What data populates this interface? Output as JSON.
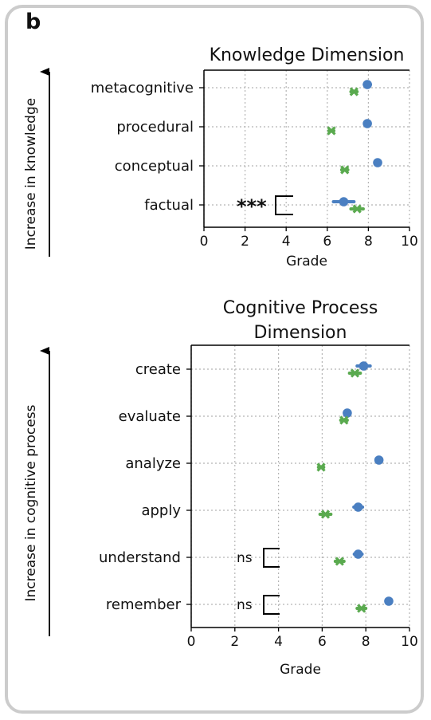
{
  "panel_label": "b",
  "colors": {
    "series_a": "#4a7fc1",
    "series_b": "#5aaa4f"
  },
  "chart_data": [
    {
      "type": "scatter",
      "title": "Knowledge Dimension",
      "xlabel": "Grade",
      "ylabel": "Increase in knowledge",
      "xlim": [
        0,
        10
      ],
      "xticks": [
        "0",
        "2",
        "4",
        "6",
        "8",
        "10"
      ],
      "grid": true,
      "categories": [
        "metacognitive",
        "procedural",
        "conceptual",
        "factual"
      ],
      "series": [
        {
          "marker": "circle",
          "color": "#4a7fc1",
          "values": [
            7.95,
            7.95,
            8.45,
            6.8
          ],
          "err": [
            0.15,
            0.12,
            0.12,
            0.5
          ]
        },
        {
          "marker": "x",
          "color": "#5aaa4f",
          "values": [
            7.3,
            6.2,
            6.85,
            7.45
          ],
          "err": [
            0.15,
            0.12,
            0.15,
            0.3
          ]
        }
      ],
      "significance": [
        {
          "category": "factual",
          "label": "***"
        }
      ]
    },
    {
      "type": "scatter",
      "title": "Cognitive Process Dimension",
      "title_lines": [
        "Cognitive Process",
        "Dimension"
      ],
      "xlabel": "Grade",
      "ylabel": "Increase in cognitive process",
      "xlim": [
        0,
        10
      ],
      "xticks": [
        "0",
        "2",
        "4",
        "6",
        "8",
        "10"
      ],
      "grid": true,
      "categories": [
        "create",
        "evaluate",
        "analyze",
        "apply",
        "understand",
        "remember"
      ],
      "series": [
        {
          "marker": "circle",
          "color": "#4a7fc1",
          "values": [
            7.9,
            7.15,
            8.6,
            7.65,
            7.65,
            9.05
          ],
          "err": [
            0.3,
            0.12,
            0.1,
            0.2,
            0.18,
            0.1
          ]
        },
        {
          "marker": "x",
          "color": "#5aaa4f",
          "values": [
            7.5,
            7.0,
            5.95,
            6.15,
            6.8,
            7.8
          ],
          "err": [
            0.25,
            0.15,
            0.12,
            0.25,
            0.2,
            0.2
          ]
        }
      ],
      "significance": [
        {
          "category": "understand",
          "label": "ns"
        },
        {
          "category": "remember",
          "label": "ns"
        }
      ]
    }
  ]
}
